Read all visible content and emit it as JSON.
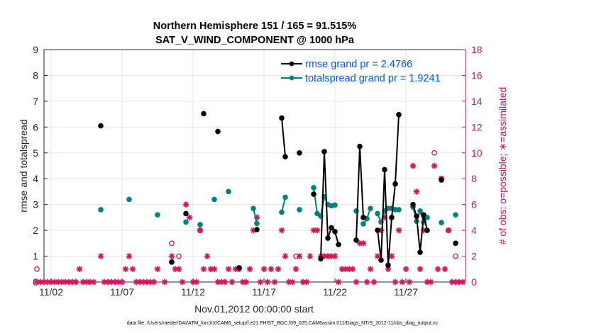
{
  "chart_data": {
    "type": "line",
    "title": "Northern Hemisphere 151 / 165 = 91.515%",
    "subtitle": "SAT_V_WIND_COMPONENT @ 1000 hPa",
    "xlabel": "Nov.01,2012 00:00:00 start",
    "ylabel_left": "rmse and totalspread",
    "ylabel_right": "# of obs: o=possible; ∗=assimilated",
    "footer": "data file: /Users/raeder/DAI/ATM_forcXX/CAM6_setup/f.e21.FHIST_BGC.f09_025.CAM6assim.011/Diags_NTrS_2012-11/obs_diag_output.nc",
    "x_unit": "days since Nov.01,2012 00:00",
    "xlim": [
      0.5,
      30.2
    ],
    "ylim_left": [
      0,
      9
    ],
    "ylim_right": [
      0,
      18
    ],
    "xticks": [
      {
        "v": 1,
        "label": "11/02"
      },
      {
        "v": 6,
        "label": "11/07"
      },
      {
        "v": 11,
        "label": "11/12"
      },
      {
        "v": 16,
        "label": "11/17"
      },
      {
        "v": 21,
        "label": "11/22"
      },
      {
        "v": 26,
        "label": "11/27"
      }
    ],
    "yticks_left": [
      "0",
      "1",
      "2",
      "3",
      "4",
      "5",
      "6",
      "7",
      "8",
      "9"
    ],
    "yticks_right": [
      "0",
      "2",
      "4",
      "6",
      "8",
      "10",
      "12",
      "14",
      "16",
      "18"
    ],
    "grid": true,
    "legend_position": "top-right",
    "colors": {
      "rmse": "#000000",
      "totalspread": "#008080",
      "obs": "#d6135a",
      "legend_text": "#0055ff"
    },
    "series": [
      {
        "name": "rmse grand pr = 2.4766",
        "key": "rmse",
        "points": [
          [
            4.5,
            6.05
          ],
          [
            9.5,
            0.77
          ],
          [
            10.5,
            2.65
          ],
          [
            11.75,
            6.52
          ],
          [
            12.75,
            5.83
          ],
          [
            14.25,
            0.55
          ],
          [
            15.5,
            2.03
          ],
          [
            17.25,
            6.35
          ],
          [
            17.5,
            4.85
          ],
          [
            18.5,
            5.0
          ],
          [
            19.5,
            3.4
          ],
          [
            20,
            0.9
          ],
          [
            20.25,
            5.05
          ],
          [
            20.5,
            1.7
          ],
          [
            20.75,
            2.1
          ],
          [
            21,
            1.95
          ],
          [
            21.25,
            1.45
          ],
          [
            22.5,
            1.62
          ],
          [
            22.75,
            5.25
          ],
          [
            23,
            2.5
          ],
          [
            24,
            2.0
          ],
          [
            24.25,
            0.85
          ],
          [
            24.5,
            4.35
          ],
          [
            24.75,
            0.65
          ],
          [
            25,
            2.5
          ],
          [
            25.25,
            3.8
          ],
          [
            25.5,
            6.48
          ],
          [
            26.5,
            3.0
          ],
          [
            26.75,
            2.55
          ],
          [
            27,
            1.15
          ],
          [
            27.25,
            2.6
          ],
          [
            27.5,
            2.0
          ],
          [
            28.5,
            3.95
          ],
          [
            29.5,
            1.5
          ]
        ]
      },
      {
        "name": "totalspread grand pr = 1.9241",
        "key": "totalspread",
        "points": [
          [
            4.5,
            2.8
          ],
          [
            6.5,
            3.2
          ],
          [
            8.5,
            2.6
          ],
          [
            9.5,
            0.78
          ],
          [
            10.5,
            2.32
          ],
          [
            11.5,
            2.22
          ],
          [
            12.5,
            3.2
          ],
          [
            13.5,
            3.5
          ],
          [
            15.25,
            2.85
          ],
          [
            15.5,
            2.27
          ],
          [
            17.25,
            2.7
          ],
          [
            17.5,
            3.28
          ],
          [
            18.5,
            2.8
          ],
          [
            19.5,
            3.65
          ],
          [
            19.75,
            2.65
          ],
          [
            20,
            2.55
          ],
          [
            20.25,
            3.3
          ],
          [
            20.5,
            3.0
          ],
          [
            20.75,
            2.95
          ],
          [
            21,
            2.98
          ],
          [
            22.5,
            2.75
          ],
          [
            23,
            2.25
          ],
          [
            23.25,
            2.45
          ],
          [
            23.5,
            2.85
          ],
          [
            24,
            2.65
          ],
          [
            24.25,
            2.32
          ],
          [
            24.5,
            2.75
          ],
          [
            24.75,
            2.85
          ],
          [
            25,
            2.85
          ],
          [
            25.25,
            2.8
          ],
          [
            25.5,
            2.8
          ],
          [
            26.5,
            2.9
          ],
          [
            26.75,
            2.35
          ],
          [
            27,
            2.75
          ],
          [
            27.25,
            2.32
          ],
          [
            27.5,
            2.5
          ],
          [
            28.5,
            2.3
          ],
          [
            29.5,
            2.6
          ]
        ]
      },
      {
        "name": "possible obs",
        "key": "obs_possible",
        "points": [
          [
            0,
            1
          ],
          [
            9.5,
            3
          ],
          [
            10,
            2
          ],
          [
            11.5,
            4
          ],
          [
            18.25,
            2
          ],
          [
            28,
            10
          ],
          [
            28.5,
            8
          ],
          [
            29,
            4
          ],
          [
            29.5,
            2
          ]
        ]
      },
      {
        "name": "assimilated obs",
        "key": "obs_assimilated",
        "points": [
          [
            0,
            0
          ],
          [
            0.25,
            0
          ],
          [
            0.5,
            0
          ],
          [
            0.75,
            0
          ],
          [
            1,
            0
          ],
          [
            1.25,
            0
          ],
          [
            1.5,
            0
          ],
          [
            1.75,
            0
          ],
          [
            2,
            0
          ],
          [
            2.25,
            0
          ],
          [
            2.5,
            0
          ],
          [
            2.75,
            0
          ],
          [
            3,
            1
          ],
          [
            3.25,
            0
          ],
          [
            3.5,
            0
          ],
          [
            3.75,
            0
          ],
          [
            4,
            0
          ],
          [
            4.5,
            2
          ],
          [
            4.75,
            0
          ],
          [
            5,
            0
          ],
          [
            5.25,
            0
          ],
          [
            5.5,
            0
          ],
          [
            5.75,
            0
          ],
          [
            6,
            0
          ],
          [
            6.25,
            1
          ],
          [
            6.5,
            2
          ],
          [
            6.75,
            1
          ],
          [
            7,
            0
          ],
          [
            7.25,
            0
          ],
          [
            7.5,
            0
          ],
          [
            7.75,
            0
          ],
          [
            8,
            0
          ],
          [
            8.25,
            0
          ],
          [
            8.5,
            1
          ],
          [
            9,
            0
          ],
          [
            9.5,
            2
          ],
          [
            9.75,
            1
          ],
          [
            10,
            1
          ],
          [
            10.25,
            0
          ],
          [
            10.5,
            6
          ],
          [
            10.75,
            5
          ],
          [
            11,
            0
          ],
          [
            11.25,
            0
          ],
          [
            11.5,
            4
          ],
          [
            11.75,
            1
          ],
          [
            12,
            2
          ],
          [
            12.25,
            1
          ],
          [
            12.5,
            1
          ],
          [
            12.75,
            0
          ],
          [
            13,
            0
          ],
          [
            13.25,
            0
          ],
          [
            13.5,
            1
          ],
          [
            13.75,
            0
          ],
          [
            14,
            1
          ],
          [
            14.25,
            1
          ],
          [
            14.5,
            0
          ],
          [
            14.75,
            0
          ],
          [
            15,
            1
          ],
          [
            15.25,
            4
          ],
          [
            15.5,
            5
          ],
          [
            15.75,
            0
          ],
          [
            16,
            1
          ],
          [
            16.25,
            0
          ],
          [
            16.5,
            1
          ],
          [
            16.75,
            0
          ],
          [
            17,
            1
          ],
          [
            17.25,
            4
          ],
          [
            17.5,
            2
          ],
          [
            17.75,
            0
          ],
          [
            18,
            0
          ],
          [
            18.25,
            1
          ],
          [
            18.5,
            2
          ],
          [
            18.75,
            0
          ],
          [
            19,
            0
          ],
          [
            19.25,
            2
          ],
          [
            19.5,
            4
          ],
          [
            19.75,
            4
          ],
          [
            20,
            2
          ],
          [
            20.25,
            2
          ],
          [
            20.5,
            2
          ],
          [
            20.75,
            2
          ],
          [
            21,
            2
          ],
          [
            21.25,
            0
          ],
          [
            21.5,
            1
          ],
          [
            21.75,
            1
          ],
          [
            22,
            1
          ],
          [
            22.25,
            1
          ],
          [
            22.5,
            0
          ],
          [
            22.75,
            3
          ],
          [
            23,
            3
          ],
          [
            23.25,
            0
          ],
          [
            23.5,
            1
          ],
          [
            23.75,
            0
          ],
          [
            24,
            2
          ],
          [
            24.25,
            4
          ],
          [
            24.5,
            5
          ],
          [
            24.75,
            1
          ],
          [
            25,
            2
          ],
          [
            25.25,
            0
          ],
          [
            25.5,
            4
          ],
          [
            25.75,
            0
          ],
          [
            26,
            1
          ],
          [
            26.25,
            0
          ],
          [
            26.5,
            9
          ],
          [
            26.75,
            7
          ],
          [
            27,
            1
          ],
          [
            27.25,
            4
          ],
          [
            27.5,
            0
          ],
          [
            27.75,
            0
          ],
          [
            28,
            9
          ],
          [
            28.25,
            1
          ],
          [
            28.5,
            8
          ],
          [
            28.75,
            1
          ],
          [
            29,
            4
          ],
          [
            29.25,
            0
          ],
          [
            29.5,
            0
          ],
          [
            29.75,
            0
          ],
          [
            30,
            0
          ]
        ]
      }
    ]
  }
}
